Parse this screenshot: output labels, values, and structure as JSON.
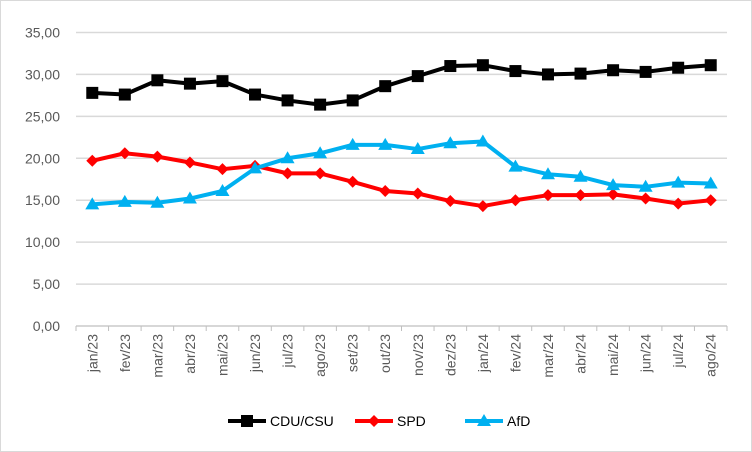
{
  "chart_data": {
    "type": "line",
    "title": "",
    "xlabel": "",
    "ylabel": "",
    "ylim": [
      0,
      35
    ],
    "yticks": [
      "0,00",
      "5,00",
      "10,00",
      "15,00",
      "20,00",
      "25,00",
      "30,00",
      "35,00"
    ],
    "grid": true,
    "legend_position": "bottom",
    "categories": [
      "jan/23",
      "fev/23",
      "mar/23",
      "abr/23",
      "mai/23",
      "jun/23",
      "jul/23",
      "ago/23",
      "set/23",
      "out/23",
      "nov/23",
      "dez/23",
      "jan/24",
      "fev/24",
      "mar/24",
      "abr/24",
      "mai/24",
      "jun/24",
      "jul/24",
      "ago/24"
    ],
    "series": [
      {
        "name": "CDU/CSU",
        "color": "#000000",
        "marker": "square",
        "values": [
          27.8,
          27.6,
          29.3,
          28.9,
          29.2,
          27.6,
          26.9,
          26.4,
          26.9,
          28.6,
          29.8,
          31.0,
          31.1,
          30.4,
          30.0,
          30.1,
          30.5,
          30.3,
          30.8,
          31.1
        ]
      },
      {
        "name": "SPD",
        "color": "#ff0000",
        "marker": "diamond",
        "values": [
          19.7,
          20.6,
          20.2,
          19.5,
          18.7,
          19.1,
          18.2,
          18.2,
          17.2,
          16.1,
          15.8,
          14.9,
          14.3,
          15.0,
          15.6,
          15.6,
          15.7,
          15.2,
          14.6,
          15.0
        ]
      },
      {
        "name": "AfD",
        "color": "#00b0f0",
        "marker": "triangle",
        "values": [
          14.5,
          14.8,
          14.7,
          15.2,
          16.1,
          18.8,
          20.0,
          20.6,
          21.6,
          21.6,
          21.1,
          21.8,
          22.0,
          19.0,
          18.1,
          17.8,
          16.8,
          16.6,
          17.1,
          17.0
        ]
      }
    ]
  }
}
